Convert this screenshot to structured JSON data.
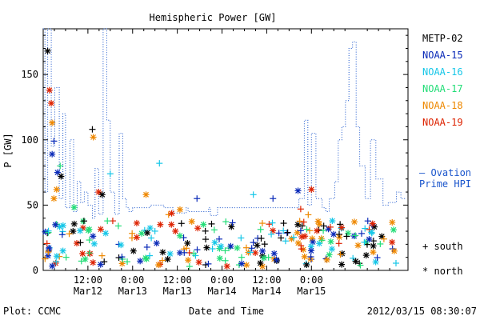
{
  "chart_data": {
    "type": "scatter",
    "title": "Hemispheric Power [GW]",
    "ylabel": "P [GW]",
    "xlabel": "Date and Time",
    "ylim": [
      0,
      185
    ],
    "xlim": [
      0,
      4.08
    ],
    "yticks": [
      0,
      50,
      100,
      150
    ],
    "xticks": [
      {
        "x": 0.5,
        "top": "12:00",
        "bottom": "Mar12"
      },
      {
        "x": 1.0,
        "top": "0:00",
        "bottom": "Mar13"
      },
      {
        "x": 1.5,
        "top": "12:00",
        "bottom": "Mar13"
      },
      {
        "x": 2.0,
        "top": "0:00",
        "bottom": "Mar14"
      },
      {
        "x": 2.5,
        "top": "12:00",
        "bottom": "Mar14"
      },
      {
        "x": 3.0,
        "top": "0:00",
        "bottom": "Mar15"
      }
    ],
    "x_unit_note": "",
    "legend": [
      "METP-02",
      "NOAA-15",
      "NOAA-16",
      "NOAA-17",
      "NOAA-18",
      "NOAA-19"
    ],
    "series_colors": {
      "METP-02": "#000000",
      "NOAA-15": "#0a2ab8",
      "NOAA-16": "#17c7e8",
      "NOAA-17": "#22dd77",
      "NOAA-18": "#ee8800",
      "NOAA-19": "#dd2200"
    },
    "ovation": {
      "label_line1": "— Ovation",
      "label_line2": "Prime HPI",
      "color": "#1a55cc",
      "x": [
        0.0,
        0.02,
        0.02,
        0.05,
        0.05,
        0.09,
        0.09,
        0.13,
        0.13,
        0.18,
        0.18,
        0.22,
        0.22,
        0.25,
        0.25,
        0.3,
        0.3,
        0.34,
        0.34,
        0.38,
        0.38,
        0.42,
        0.42,
        0.46,
        0.46,
        0.5,
        0.5,
        0.55,
        0.55,
        0.58,
        0.58,
        0.62,
        0.62,
        0.67,
        0.67,
        0.71,
        0.71,
        0.75,
        0.75,
        0.8,
        0.8,
        0.85,
        0.85,
        0.89,
        0.89,
        0.93,
        0.93,
        0.96,
        0.96,
        1.0,
        1.0,
        1.2,
        1.2,
        1.35,
        1.35,
        1.45,
        1.45,
        1.6,
        1.6,
        1.62,
        1.62,
        1.85,
        1.85,
        1.87,
        1.87,
        1.95,
        1.95,
        2.3,
        2.3,
        2.8,
        2.8,
        2.86,
        2.86,
        2.92,
        2.92,
        2.96,
        2.96,
        3.0,
        3.0,
        3.05,
        3.05,
        3.12,
        3.12,
        3.16,
        3.16,
        3.2,
        3.2,
        3.26,
        3.26,
        3.3,
        3.3,
        3.34,
        3.34,
        3.38,
        3.38,
        3.42,
        3.42,
        3.46,
        3.46,
        3.5,
        3.5,
        3.54,
        3.54,
        3.6,
        3.6,
        3.66,
        3.66,
        3.72,
        3.72,
        3.8,
        3.8,
        3.86,
        3.86,
        3.95,
        3.95,
        4.0,
        4.0,
        4.05
      ],
      "y": [
        185,
        185,
        60,
        60,
        185,
        185,
        95,
        95,
        140,
        140,
        55,
        55,
        120,
        120,
        48,
        48,
        100,
        100,
        45,
        45,
        68,
        68,
        52,
        52,
        60,
        60,
        50,
        50,
        40,
        40,
        78,
        78,
        43,
        43,
        185,
        185,
        115,
        115,
        60,
        60,
        43,
        43,
        105,
        105,
        55,
        55,
        48,
        48,
        45,
        45,
        48,
        48,
        50,
        50,
        48,
        48,
        44,
        44,
        48,
        48,
        45,
        45,
        48,
        48,
        42,
        42,
        48,
        48,
        48,
        48,
        48,
        48,
        55,
        55,
        115,
        115,
        50,
        50,
        105,
        105,
        55,
        55,
        48,
        48,
        45,
        45,
        55,
        55,
        68,
        68,
        100,
        100,
        110,
        110,
        130,
        130,
        170,
        170,
        175,
        175,
        110,
        110,
        80,
        80,
        55,
        55,
        100,
        100,
        70,
        70,
        50,
        50,
        52,
        52,
        60,
        60,
        55,
        55
      ]
    },
    "markers_legend": [
      {
        "symbol": "+",
        "label": "south"
      },
      {
        "symbol": "*",
        "label": "north"
      }
    ]
  },
  "footer": {
    "left": "Plot: CCMC",
    "right": "2012/03/15 08:30:07"
  }
}
